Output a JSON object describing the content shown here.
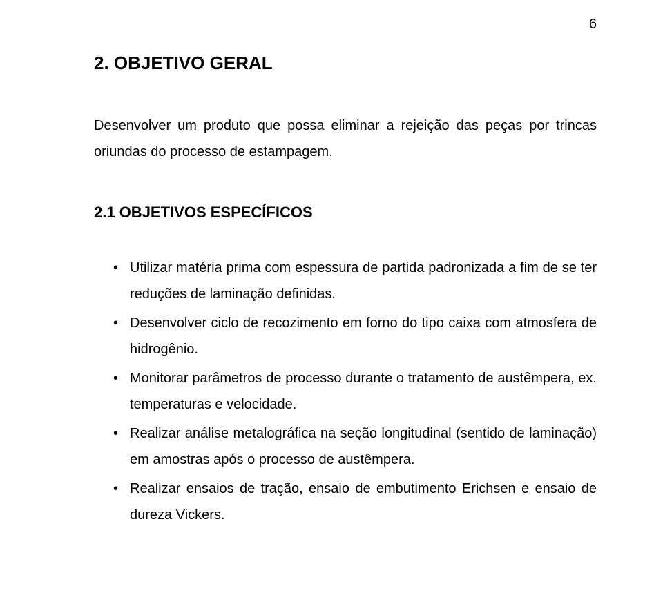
{
  "page_number": "6",
  "heading1": "2. OBJETIVO GERAL",
  "paragraph1": "Desenvolver um produto que possa eliminar a rejeição das peças por trincas oriundas do processo de estampagem.",
  "heading2": "2.1 OBJETIVOS ESPECÍFICOS",
  "bullets": [
    "Utilizar matéria prima com espessura de partida padronizada a fim de se ter reduções de laminação definidas.",
    "Desenvolver ciclo de recozimento em forno do tipo caixa com atmosfera de hidrogênio.",
    "Monitorar parâmetros de processo durante o tratamento de austêmpera, ex. temperaturas e velocidade.",
    "Realizar análise metalográfica na seção longitudinal (sentido de laminação) em amostras após o processo de austêmpera.",
    "Realizar ensaios de tração, ensaio de embutimento Erichsen e ensaio de dureza Vickers."
  ]
}
